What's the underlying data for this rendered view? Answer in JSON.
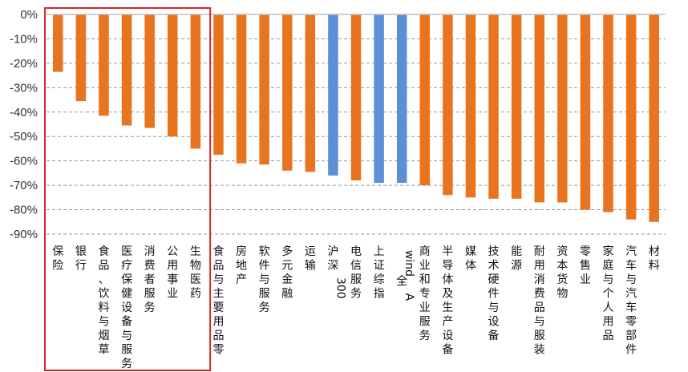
{
  "chart_data": {
    "type": "bar",
    "title": "",
    "xlabel": "",
    "ylabel": "",
    "ylim": [
      -90,
      0
    ],
    "yticks": [
      0,
      -10,
      -20,
      -30,
      -40,
      -50,
      -60,
      -70,
      -80,
      -90
    ],
    "ytick_labels": [
      "0%",
      "-10%",
      "-20%",
      "-30%",
      "-40%",
      "-50%",
      "-60%",
      "-70%",
      "-80%",
      "-90%"
    ],
    "grid": true,
    "legend": "none",
    "colors": {
      "default": "#E8741F",
      "highlight": "#5B8FD6",
      "frame": "#D42A2A",
      "grid": "#9A9A9A",
      "axis": "#BFBFBF"
    },
    "categories": [
      "保险",
      "银行",
      "食品、饮料与烟草",
      "医疗保健设备与服务",
      "消费者服务",
      "公用事业",
      "生物医药",
      "食品与主要用品零",
      "房地产",
      "软件与服务",
      "多元金融",
      "运输",
      "沪深300",
      "电信服务",
      "上证综指",
      "wind全A",
      "商业和专业服务",
      "半导体及生产设备",
      "媒体",
      "技术硬件与设备",
      "能源",
      "耐用消费品与服装",
      "资本货物",
      "零售业",
      "家庭与个人用品",
      "汽车与汽车零部件",
      "材料"
    ],
    "values": [
      -23.5,
      -35.5,
      -41.5,
      -45.5,
      -46.5,
      -50,
      -55,
      -57.5,
      -61,
      -61.5,
      -64,
      -64.5,
      -66,
      -68,
      -69,
      -69,
      -70,
      -74,
      -75,
      -75.5,
      -75.5,
      -77,
      -77,
      -80,
      -81,
      -84,
      -85
    ],
    "highlight": [
      false,
      false,
      false,
      false,
      false,
      false,
      false,
      false,
      false,
      false,
      false,
      false,
      true,
      false,
      true,
      true,
      false,
      false,
      false,
      false,
      false,
      false,
      false,
      false,
      false,
      false,
      false
    ],
    "boxed_categories": [
      "保险",
      "银行",
      "食品、饮料与烟草",
      "医疗保健设备与服务",
      "消费者服务",
      "公用事业",
      "生物医药"
    ]
  }
}
